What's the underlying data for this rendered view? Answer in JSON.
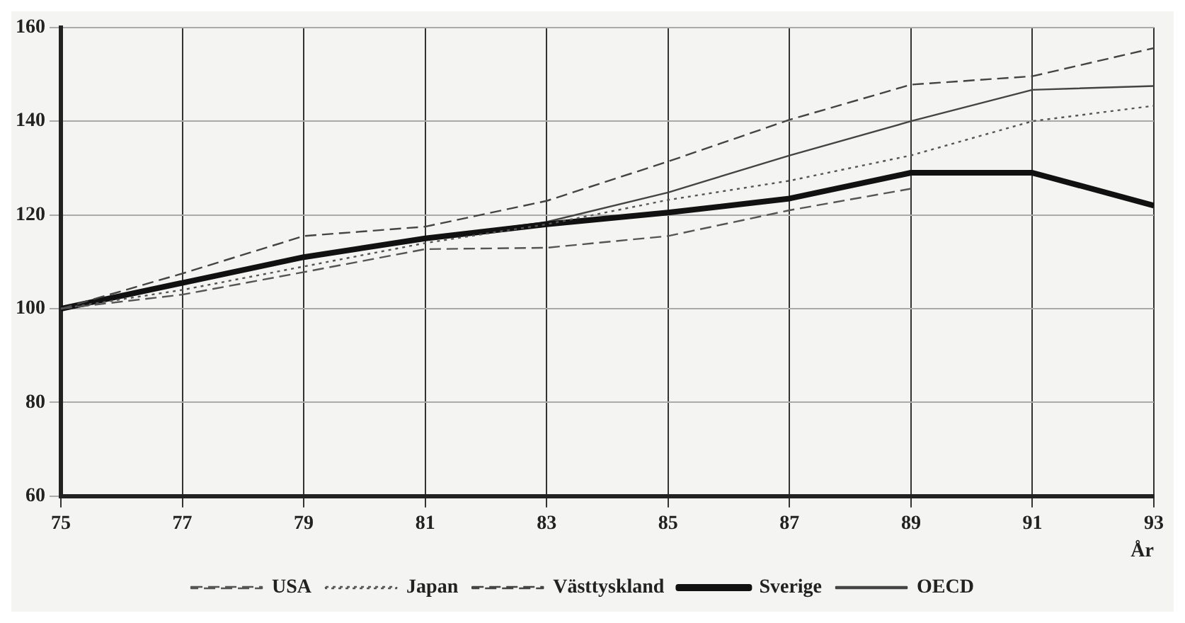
{
  "chart_data": {
    "type": "line",
    "xlabel": "År",
    "x": [
      75,
      77,
      79,
      81,
      83,
      85,
      87,
      89,
      91,
      93
    ],
    "series": [
      {
        "name": "USA",
        "color": "#555555",
        "line_style": "dashed",
        "values": [
          100,
          103,
          107.8,
          112.7,
          113,
          115.5,
          121,
          125.6,
          null,
          null
        ]
      },
      {
        "name": "Japan",
        "color": "#555555",
        "line_style": "dotted",
        "values": [
          100,
          104,
          109,
          114,
          118,
          123.2,
          127.3,
          132.7,
          140,
          143.3
        ]
      },
      {
        "name": "Västtyskland",
        "color": "#444444",
        "line_style": "dashed",
        "values": [
          100,
          107.5,
          115.5,
          117.5,
          123,
          131.4,
          140.3,
          147.8,
          149.6,
          155.6
        ]
      },
      {
        "name": "Sverige",
        "color": "#111111",
        "line_style": "solid",
        "values": [
          100,
          105.5,
          111,
          115,
          118,
          120.5,
          123.5,
          129,
          129,
          122
        ]
      },
      {
        "name": "OECD",
        "color": "#444444",
        "line_style": "solid",
        "values": [
          100,
          105.5,
          111,
          115,
          118.5,
          124.8,
          132.7,
          140,
          146.7,
          147.5
        ]
      }
    ],
    "xlim": [
      75,
      93
    ],
    "xticks": [
      75,
      77,
      79,
      81,
      83,
      85,
      87,
      89,
      91,
      93
    ],
    "ylim": [
      60,
      160
    ],
    "yticks": [
      60,
      80,
      100,
      120,
      140,
      160
    ],
    "grid": true,
    "legend": "bottom",
    "marker": "none"
  }
}
